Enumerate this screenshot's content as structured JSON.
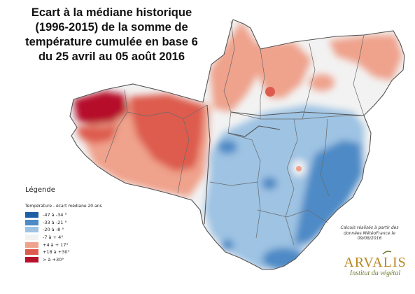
{
  "title_lines": [
    "Ecart à la médiane historique",
    "(1996-2015) de la somme de",
    "température cumulée en base 6",
    "du 25 avril au 05 août 2016"
  ],
  "legend": {
    "title": "Légende",
    "subtitle": "Température - écart médiane 20 ans",
    "items": [
      {
        "label": "-47 à -34 °",
        "color": "#1f5fa6"
      },
      {
        "label": "-33 à -21 °",
        "color": "#4d8ac6"
      },
      {
        "label": "-20 à -8 °",
        "color": "#9ec3e3"
      },
      {
        "label": "-7 à + 4°",
        "color": "#f2f2f2"
      },
      {
        "label": "+4 à + 17°",
        "color": "#efa28c"
      },
      {
        "label": "+18 à +30°",
        "color": "#dd5b4e"
      },
      {
        "label": "> à +30°",
        "color": "#b5112a"
      }
    ]
  },
  "note_lines": [
    "Calculs réalisés à partir des",
    "données MétéoFrance le",
    "09/08/2016"
  ],
  "logo": {
    "name": "ARVALIS",
    "tagline": "Institut du végétal"
  },
  "colors": {
    "region_border": "#555555",
    "department_border": "#6a6a6a",
    "logo_gold": "#b9861f",
    "logo_green": "#6b7a2a"
  }
}
